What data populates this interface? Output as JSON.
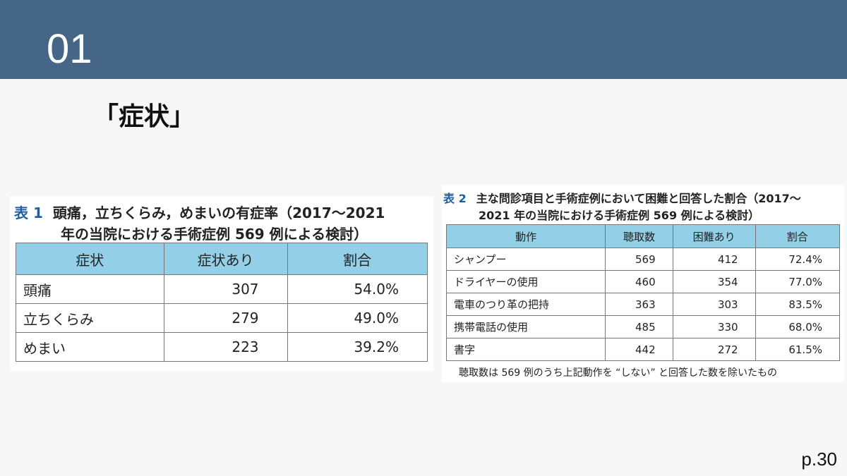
{
  "header": {
    "number": "01"
  },
  "title": "「症状」",
  "table1": {
    "label": "表 1",
    "caption": [
      "頭痛，立ちくらみ，めまいの有症率（2017〜2021",
      "年の当院における手術症例 569 例による検討）"
    ],
    "columns": [
      "症状",
      "症状あり",
      "割合"
    ],
    "rows": [
      [
        "頭痛",
        "307",
        "54.0%"
      ],
      [
        "立ちくらみ",
        "279",
        "49.0%"
      ],
      [
        "めまい",
        "223",
        "39.2%"
      ]
    ]
  },
  "table2": {
    "label": "表 2",
    "caption": [
      "主な問診項目と手術症例において困難と回答した割合（2017〜",
      "2021 年の当院における手術症例 569 例による検討）"
    ],
    "columns": [
      "動作",
      "聴取数",
      "困難あり",
      "割合"
    ],
    "rows": [
      [
        "シャンプー",
        "569",
        "412",
        "72.4%"
      ],
      [
        "ドライヤーの使用",
        "460",
        "354",
        "77.0%"
      ],
      [
        "電車のつり革の把持",
        "363",
        "303",
        "83.5%"
      ],
      [
        "携帯電話の使用",
        "485",
        "330",
        "68.0%"
      ],
      [
        "書字",
        "442",
        "272",
        "61.5%"
      ]
    ],
    "note": "聴取数は 569 例のうち上記動作を “しない” と回答した数を除いたもの"
  },
  "page": "p.30"
}
